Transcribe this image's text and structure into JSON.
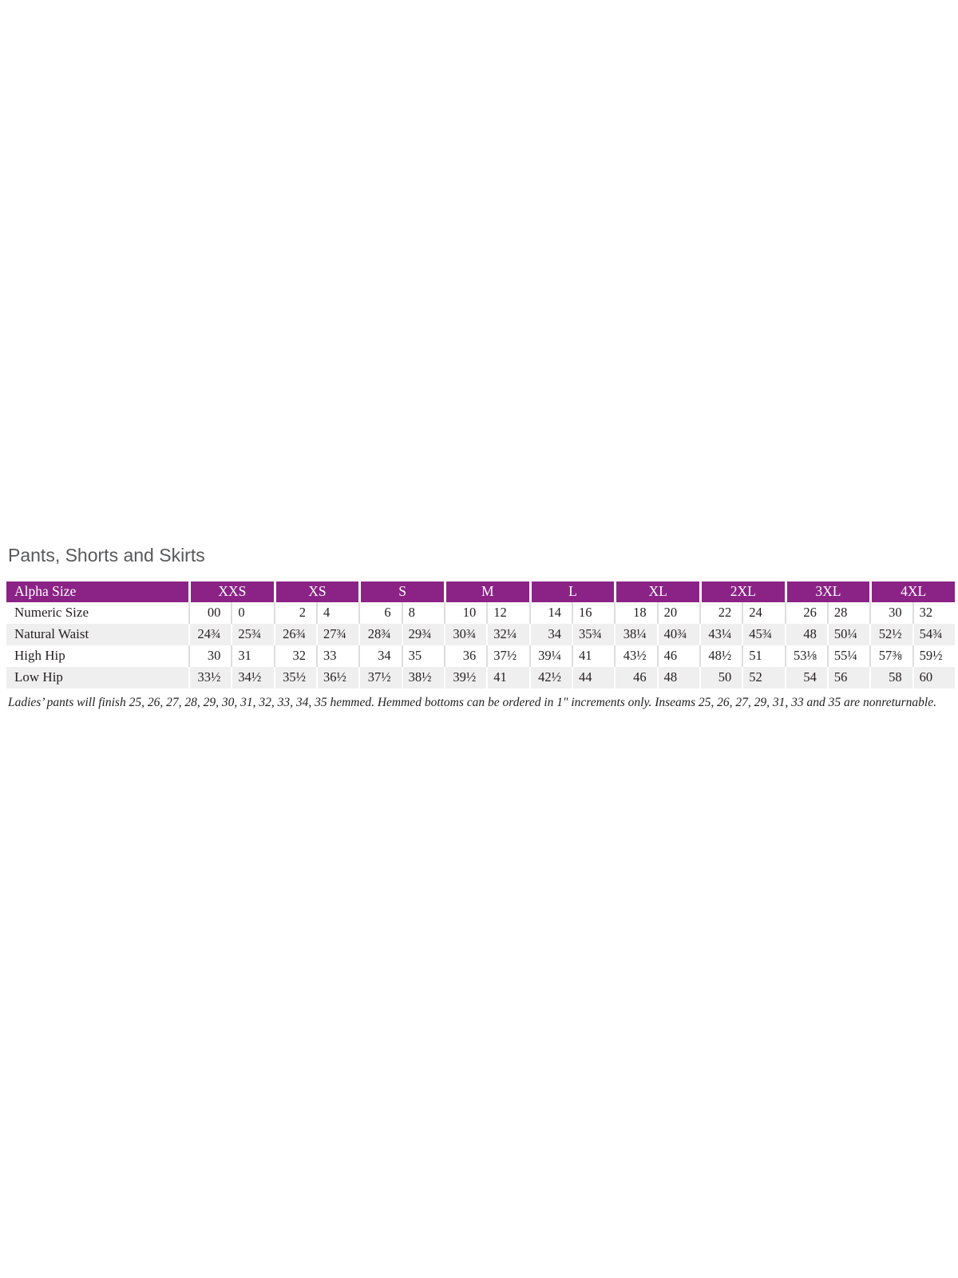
{
  "section": {
    "title": "Pants, Shorts and Skirts",
    "footnote": "Ladies’ pants will finish 25, 26, 27, 28, 29, 30, 31, 32, 33, 34, 35 hemmed. Hemmed bottoms can be ordered in 1″ increments only. Inseams 25, 26, 27, 29, 31, 33 and 35 are nonreturnable."
  },
  "colors": {
    "header_bg": "#8B2386",
    "header_text": "#FFFFFF",
    "stripe_bg": "#F0EFEF",
    "divider": "#DEDCDC",
    "body_text": "#231F20",
    "title_text": "#57585A"
  },
  "table": {
    "header": {
      "label": "Alpha Size",
      "groups": [
        "XXS",
        "XS",
        "S",
        "M",
        "L",
        "XL",
        "2XL",
        "3XL",
        "4XL"
      ]
    },
    "rows": [
      {
        "label": "Numeric Size",
        "values": [
          [
            "00",
            "0"
          ],
          [
            "2",
            "4"
          ],
          [
            "6",
            "8"
          ],
          [
            "10",
            "12"
          ],
          [
            "14",
            "16"
          ],
          [
            "18",
            "20"
          ],
          [
            "22",
            "24"
          ],
          [
            "26",
            "28"
          ],
          [
            "30",
            "32"
          ]
        ]
      },
      {
        "label": "Natural Waist",
        "values": [
          [
            "24¾",
            "25¾"
          ],
          [
            "26¾",
            "27¾"
          ],
          [
            "28¾",
            "29¾"
          ],
          [
            "30¾",
            "32¼"
          ],
          [
            "34",
            "35¾"
          ],
          [
            "38¼",
            "40¾"
          ],
          [
            "43¼",
            "45¾"
          ],
          [
            "48",
            "50¼"
          ],
          [
            "52½",
            "54¾"
          ]
        ]
      },
      {
        "label": "High Hip",
        "values": [
          [
            "30",
            "31"
          ],
          [
            "32",
            "33"
          ],
          [
            "34",
            "35"
          ],
          [
            "36",
            "37½"
          ],
          [
            "39¼",
            "41"
          ],
          [
            "43½",
            "46"
          ],
          [
            "48½",
            "51"
          ],
          [
            "53⅛",
            "55¼"
          ],
          [
            "57⅜",
            "59½"
          ]
        ]
      },
      {
        "label": "Low Hip",
        "values": [
          [
            "33½",
            "34½"
          ],
          [
            "35½",
            "36½"
          ],
          [
            "37½",
            "38½"
          ],
          [
            "39½",
            "41"
          ],
          [
            "42½",
            "44"
          ],
          [
            "46",
            "48"
          ],
          [
            "50",
            "52"
          ],
          [
            "54",
            "56"
          ],
          [
            "58",
            "60"
          ]
        ]
      }
    ]
  }
}
